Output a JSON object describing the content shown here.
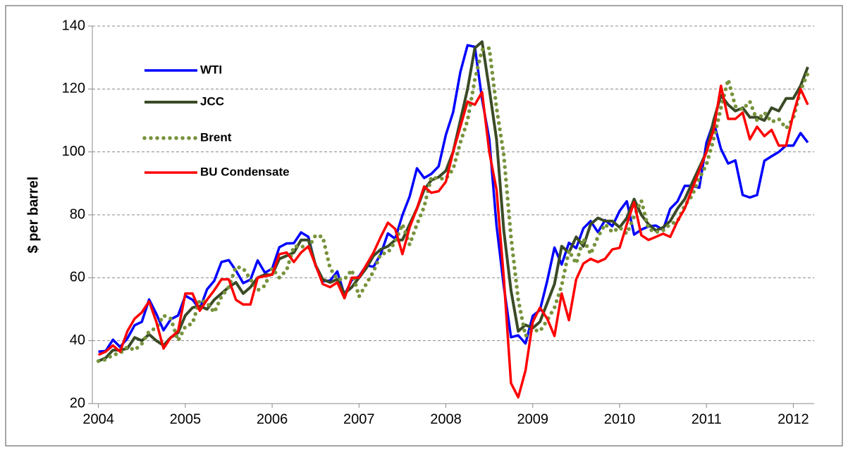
{
  "chart_data": {
    "type": "line",
    "y_label": "$ per barrel",
    "xlim": [
      2003.93,
      2012.24
    ],
    "xticks": [
      2004,
      2005,
      2006,
      2007,
      2008,
      2009,
      2010,
      2011,
      2012
    ],
    "ylim": [
      20,
      140
    ],
    "yticks": [
      20,
      40,
      60,
      80,
      100,
      120,
      140
    ],
    "grid": true,
    "legend": "upper left",
    "x": [
      2004,
      2004.083,
      2004.167,
      2004.25,
      2004.333,
      2004.417,
      2004.5,
      2004.583,
      2004.667,
      2004.75,
      2004.833,
      2004.917,
      2005,
      2005.083,
      2005.167,
      2005.25,
      2005.333,
      2005.417,
      2005.5,
      2005.583,
      2005.667,
      2005.75,
      2005.833,
      2005.917,
      2006,
      2006.083,
      2006.167,
      2006.25,
      2006.333,
      2006.417,
      2006.5,
      2006.583,
      2006.667,
      2006.75,
      2006.833,
      2006.917,
      2007,
      2007.083,
      2007.167,
      2007.25,
      2007.333,
      2007.417,
      2007.5,
      2007.583,
      2007.667,
      2007.75,
      2007.833,
      2007.917,
      2008,
      2008.083,
      2008.167,
      2008.25,
      2008.333,
      2008.417,
      2008.5,
      2008.583,
      2008.667,
      2008.75,
      2008.833,
      2008.917,
      2009,
      2009.083,
      2009.167,
      2009.25,
      2009.333,
      2009.417,
      2009.5,
      2009.583,
      2009.667,
      2009.75,
      2009.833,
      2009.917,
      2010,
      2010.083,
      2010.167,
      2010.25,
      2010.333,
      2010.417,
      2010.5,
      2010.583,
      2010.667,
      2010.75,
      2010.833,
      2010.917,
      2011,
      2011.083,
      2011.167,
      2011.25,
      2011.333,
      2011.417,
      2011.5,
      2011.583,
      2011.667,
      2011.75,
      2011.833,
      2011.917,
      2012,
      2012.083,
      2012.167
    ],
    "series": [
      {
        "name": "WTI",
        "color": "#0000ff",
        "style": "solid",
        "values": [
          36.5,
          36.7,
          40.3,
          38,
          40.7,
          44.9,
          46,
          53.1,
          48.5,
          43.3,
          46.8,
          48,
          54.3,
          53,
          50,
          56.3,
          59,
          65,
          65.6,
          62.3,
          58.3,
          59.4,
          65.5,
          61.6,
          62.9,
          69.7,
          70.9,
          71,
          74.4,
          73,
          63.8,
          58.9,
          59.1,
          62,
          54.5,
          59.3,
          60.4,
          63.9,
          63.5,
          67.5,
          74.1,
          72.4,
          79.9,
          85.8,
          94.8,
          91.7,
          93,
          95.4,
          105.4,
          112.6,
          125.4,
          133.9,
          133.4,
          116.7,
          104.1,
          76.6,
          57.3,
          41.1,
          41.7,
          39.1,
          47.9,
          49.7,
          59,
          69.6,
          64.2,
          71.1,
          69.4,
          75.7,
          78,
          74.5,
          78.3,
          76.4,
          81.2,
          84.3,
          73.7,
          75.3,
          76.3,
          76.6,
          75.2,
          81.9,
          84.3,
          89.2,
          89.2,
          88.6,
          102.9,
          109.5,
          100.9,
          96.3,
          97.3,
          86.3,
          85.5,
          86.3,
          97.2,
          98.6,
          100,
          102,
          102,
          106,
          103
        ]
      },
      {
        "name": "JCC",
        "color": "#3a4a26",
        "style": "solid",
        "values": [
          33.5,
          34.5,
          37,
          37,
          37.5,
          41,
          40,
          42,
          40,
          38.5,
          41,
          42.5,
          48,
          50.5,
          51,
          50,
          53,
          55,
          57,
          58.5,
          55,
          57,
          60,
          61,
          61,
          66,
          67,
          68,
          72,
          72,
          64,
          59.5,
          58.5,
          59.5,
          55,
          57,
          60,
          63,
          67,
          69,
          70,
          72,
          72,
          77,
          82,
          88,
          91,
          92,
          94,
          100,
          110,
          120,
          133,
          135,
          120,
          104,
          75,
          56,
          43,
          45,
          44,
          46,
          52,
          58,
          70,
          68,
          73,
          70,
          77,
          79,
          78,
          78,
          76,
          79,
          85,
          80,
          77,
          75,
          76,
          78,
          82,
          85,
          90,
          95,
          100,
          110,
          118,
          115,
          113,
          114,
          111,
          111,
          110,
          114,
          113,
          117,
          117,
          121,
          127
        ]
      },
      {
        "name": "Brent",
        "color": "#77933c",
        "style": "dotted",
        "values": [
          33.5,
          34,
          35.5,
          36,
          38,
          37,
          39,
          43,
          44,
          48,
          47,
          40,
          44.5,
          45.5,
          53,
          52,
          49,
          54,
          57,
          63.5,
          63,
          59.5,
          56,
          57.5,
          63,
          60,
          62.5,
          70,
          70,
          69.5,
          73.5,
          73,
          63,
          59.5,
          59.5,
          62.5,
          54,
          58,
          62,
          67.5,
          68,
          71.5,
          77,
          70.5,
          77,
          82.5,
          92,
          91.5,
          91.5,
          94.5,
          103,
          110,
          123,
          132.5,
          133,
          114,
          99,
          73,
          53,
          41.5,
          43.5,
          43,
          46.5,
          50.5,
          57.5,
          68.6,
          64.5,
          72.5,
          67.5,
          73,
          77,
          74.5,
          76,
          74,
          79.5,
          84.5,
          75.5,
          74.5,
          75,
          77,
          78,
          83,
          86,
          91.5,
          96,
          104,
          114,
          123,
          114.5,
          113.5,
          116,
          110,
          112.5,
          109.5,
          110.5,
          107.5,
          110.7,
          119.5,
          125
        ]
      },
      {
        "name": "BU Condensate",
        "color": "#ff0000",
        "style": "solid",
        "values": [
          35.5,
          36.5,
          38.5,
          36.5,
          43,
          47,
          49,
          52.5,
          46,
          37.5,
          41,
          43,
          55,
          55,
          49.5,
          53,
          56,
          59.5,
          59.5,
          53,
          51.5,
          51.5,
          60,
          60.5,
          61,
          67.5,
          68,
          65,
          68,
          70,
          64,
          58,
          57,
          58.5,
          53.5,
          60,
          60,
          64,
          68,
          73,
          77.5,
          75.5,
          67.5,
          76,
          82,
          89,
          87,
          87.5,
          90.5,
          100,
          108,
          116,
          115,
          119,
          100,
          88,
          60,
          26.5,
          22,
          30.5,
          46,
          50.5,
          47,
          41.5,
          55,
          46.5,
          59.5,
          64.5,
          66,
          65,
          66,
          69,
          69.5,
          77,
          84,
          73.5,
          72,
          73,
          74,
          73,
          78,
          82,
          88,
          94,
          100,
          107,
          121,
          110.5,
          110.5,
          112.5,
          104,
          108,
          105,
          107,
          102,
          102,
          112,
          120,
          115
        ]
      }
    ]
  }
}
